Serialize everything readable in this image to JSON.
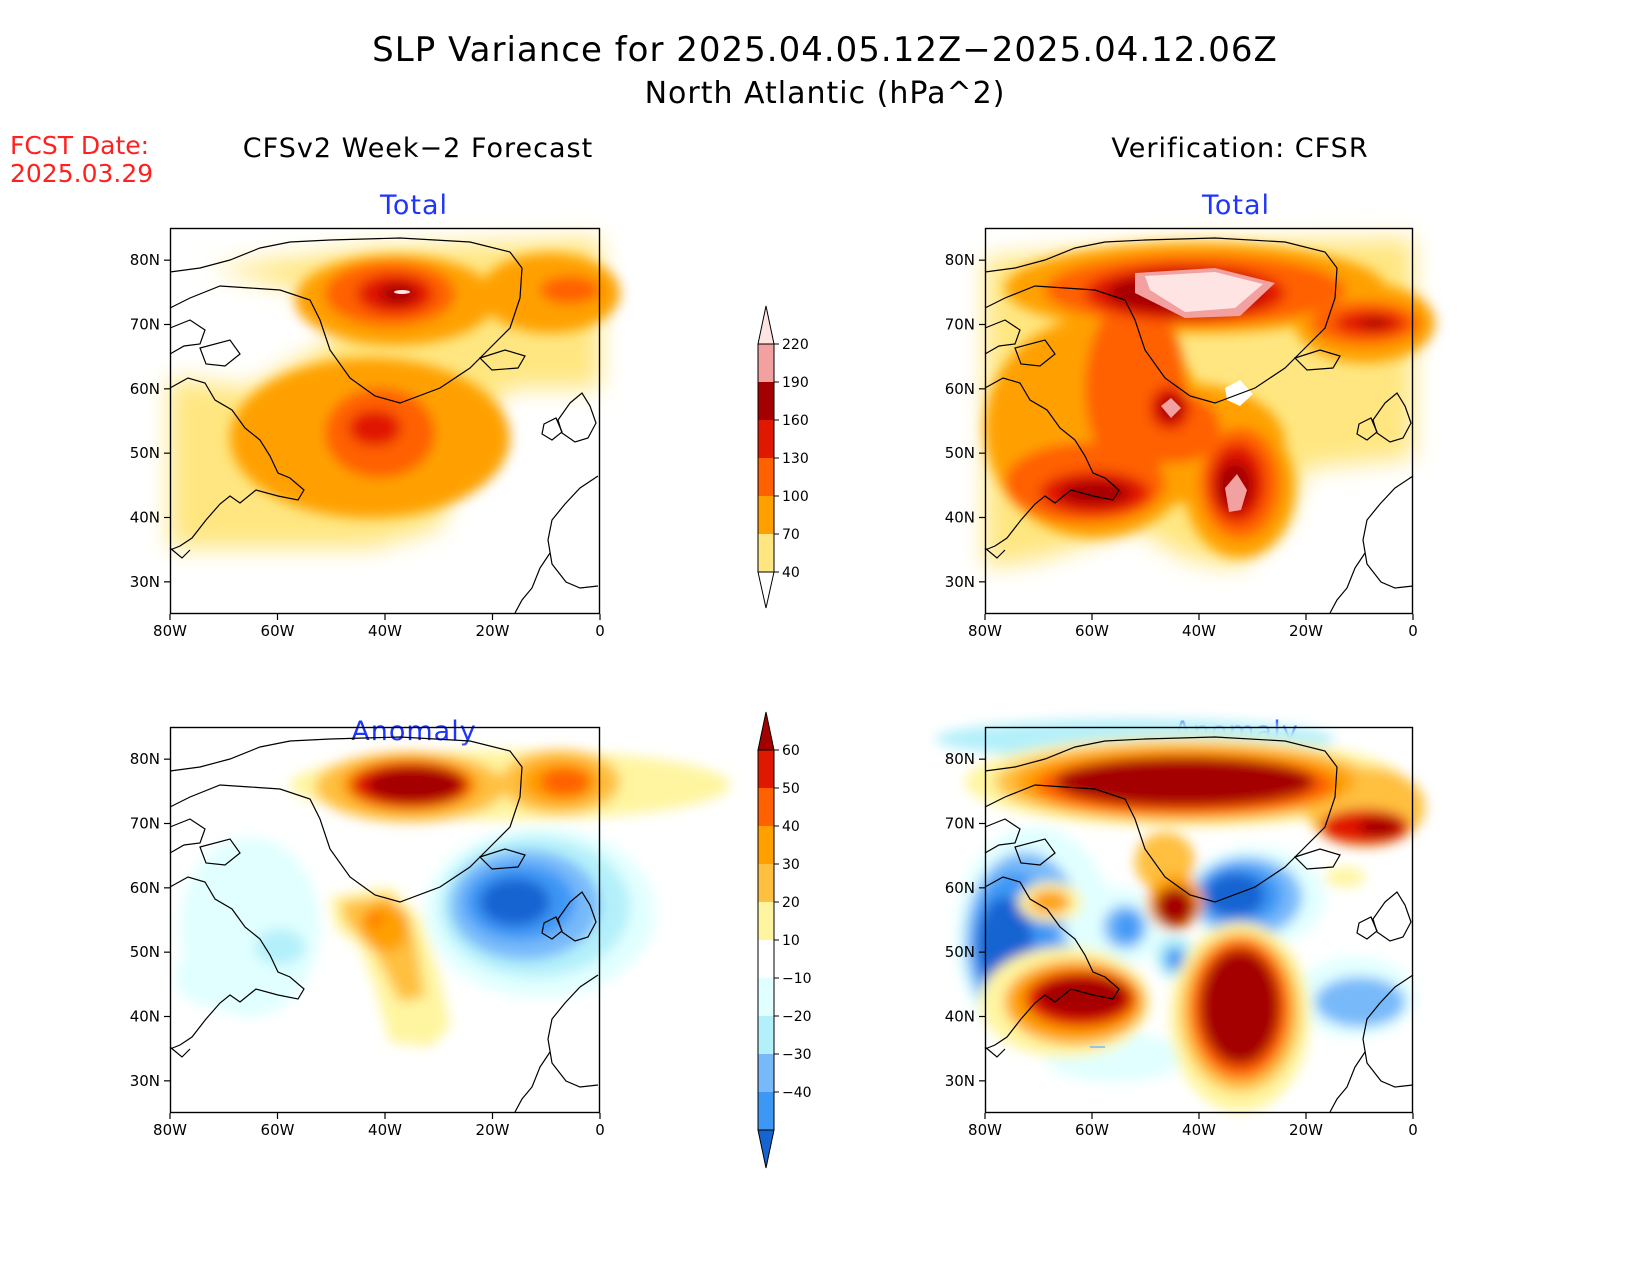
{
  "header": {
    "title_line1": "SLP Variance for 2025.04.05.12Z−2025.04.12.06Z",
    "title_line2": "North Atlantic (hPa^2)",
    "fcst_label": "FCST Date:",
    "fcst_date": "2025.03.29"
  },
  "columns": {
    "left_title": "CFSv2 Week−2 Forecast",
    "right_title": "Verification: CFSR"
  },
  "panels": {
    "top_left": {
      "subtitle": "Total"
    },
    "top_right": {
      "subtitle": "Total"
    },
    "bottom_left": {
      "subtitle": "Anomaly"
    },
    "bottom_right": {
      "subtitle": "Anomaly"
    }
  },
  "axes": {
    "lat_labels": [
      "80N",
      "70N",
      "60N",
      "50N",
      "40N",
      "30N"
    ],
    "lat_values": [
      80,
      70,
      60,
      50,
      40,
      30
    ],
    "lon_labels": [
      "80W",
      "60W",
      "40W",
      "20W",
      "0"
    ],
    "lon_values": [
      -80,
      -60,
      -40,
      -20,
      0
    ],
    "lat_range": [
      25,
      85
    ],
    "lon_range": [
      -80,
      0
    ]
  },
  "colorbars": {
    "total": {
      "labels": [
        "40",
        "70",
        "100",
        "130",
        "160",
        "190",
        "220"
      ],
      "colors": [
        "#ffe680",
        "#ffa000",
        "#ff6000",
        "#e11800",
        "#a50000",
        "#f2a0a0",
        "#ffe4e4"
      ]
    },
    "anomaly": {
      "labels": [
        "60",
        "50",
        "40",
        "30",
        "20",
        "10",
        "−10",
        "−20",
        "−30",
        "−40"
      ],
      "colors": [
        "#a50000",
        "#e11800",
        "#ff6000",
        "#ffa000",
        "#ffc040",
        "#fff5a0",
        "#ffffff",
        "#e1ffff",
        "#b4f0fa",
        "#78b9fa",
        "#3c97f5",
        "#1464d2"
      ]
    }
  }
}
